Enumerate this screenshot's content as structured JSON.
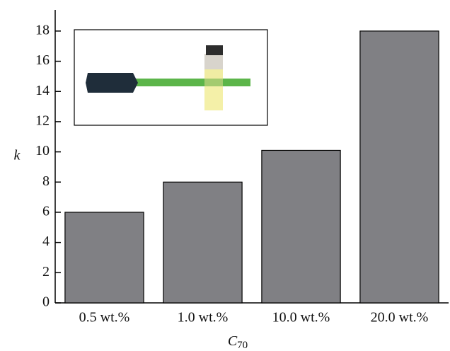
{
  "chart_data": {
    "type": "bar",
    "categories": [
      "0.5 wt.%",
      "1.0 wt.%",
      "10.0 wt.%",
      "20.0 wt.%"
    ],
    "values": [
      6,
      8,
      10.1,
      18
    ],
    "color": "#808084",
    "ylim": [
      0,
      19.4
    ],
    "yticks": [
      0,
      2,
      4,
      6,
      8,
      10,
      12,
      14,
      16,
      18
    ],
    "ylabel": "k",
    "xlabel": "C",
    "xlabel_subscript": "70",
    "grid": false
  }
}
